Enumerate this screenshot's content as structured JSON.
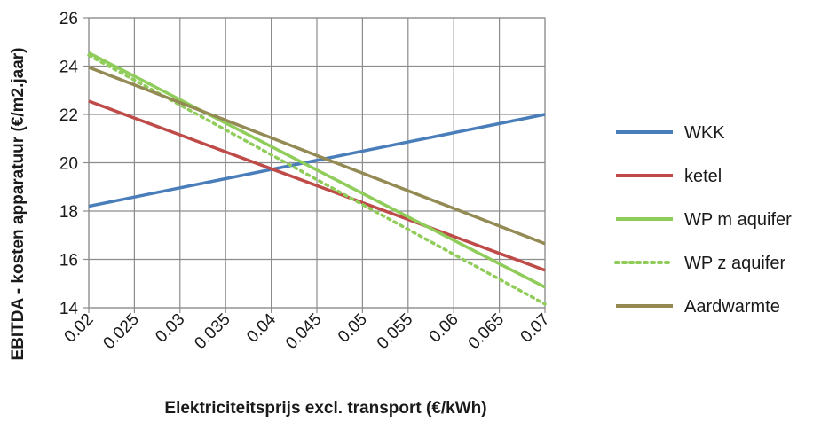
{
  "chart_data": {
    "type": "line",
    "title": "",
    "xlabel": "Elektriciteitsprijs excl. transport (€/kWh)",
    "ylabel": "EBITDA - kosten apparatuur (€/m2.jaar)",
    "x": [
      0.02,
      0.025,
      0.03,
      0.035,
      0.04,
      0.045,
      0.05,
      0.055,
      0.06,
      0.065,
      0.07
    ],
    "x_tick_labels": [
      "0.02",
      "0.025",
      "0.03",
      "0.035",
      "0.04",
      "0.045",
      "0.05",
      "0.055",
      "0.06",
      "0.065",
      "0.07"
    ],
    "xlim": [
      0.02,
      0.07
    ],
    "ylim": [
      14,
      26
    ],
    "y_ticks": [
      14,
      16,
      18,
      20,
      22,
      24,
      26
    ],
    "grid": true,
    "legend_position": "right",
    "series": [
      {
        "name": "WKK",
        "color": "#4a7ebb",
        "dash": "solid",
        "values": [
          18.2,
          18.58,
          18.96,
          19.34,
          19.72,
          20.1,
          20.48,
          20.86,
          21.24,
          21.62,
          22.0
        ]
      },
      {
        "name": "ketel",
        "color": "#be4b48",
        "dash": "solid",
        "values": [
          22.55,
          21.85,
          21.15,
          20.45,
          19.75,
          19.05,
          18.35,
          17.65,
          16.95,
          16.25,
          15.55
        ]
      },
      {
        "name": "WP m aquifer",
        "color": "#8fcc59",
        "dash": "solid",
        "values": [
          24.55,
          23.58,
          22.61,
          21.64,
          20.67,
          19.7,
          18.73,
          17.76,
          16.79,
          15.82,
          14.85
        ]
      },
      {
        "name": "WP z aquifer",
        "color": "#8fcc59",
        "dash": "dotted",
        "values": [
          24.45,
          23.42,
          22.39,
          21.36,
          20.33,
          19.3,
          18.27,
          17.24,
          16.21,
          15.18,
          14.15
        ]
      },
      {
        "name": "Aardwarmte",
        "color": "#948a54",
        "dash": "solid",
        "values": [
          23.95,
          23.22,
          22.49,
          21.76,
          21.03,
          20.3,
          19.57,
          18.84,
          18.11,
          17.38,
          16.65
        ]
      }
    ]
  }
}
